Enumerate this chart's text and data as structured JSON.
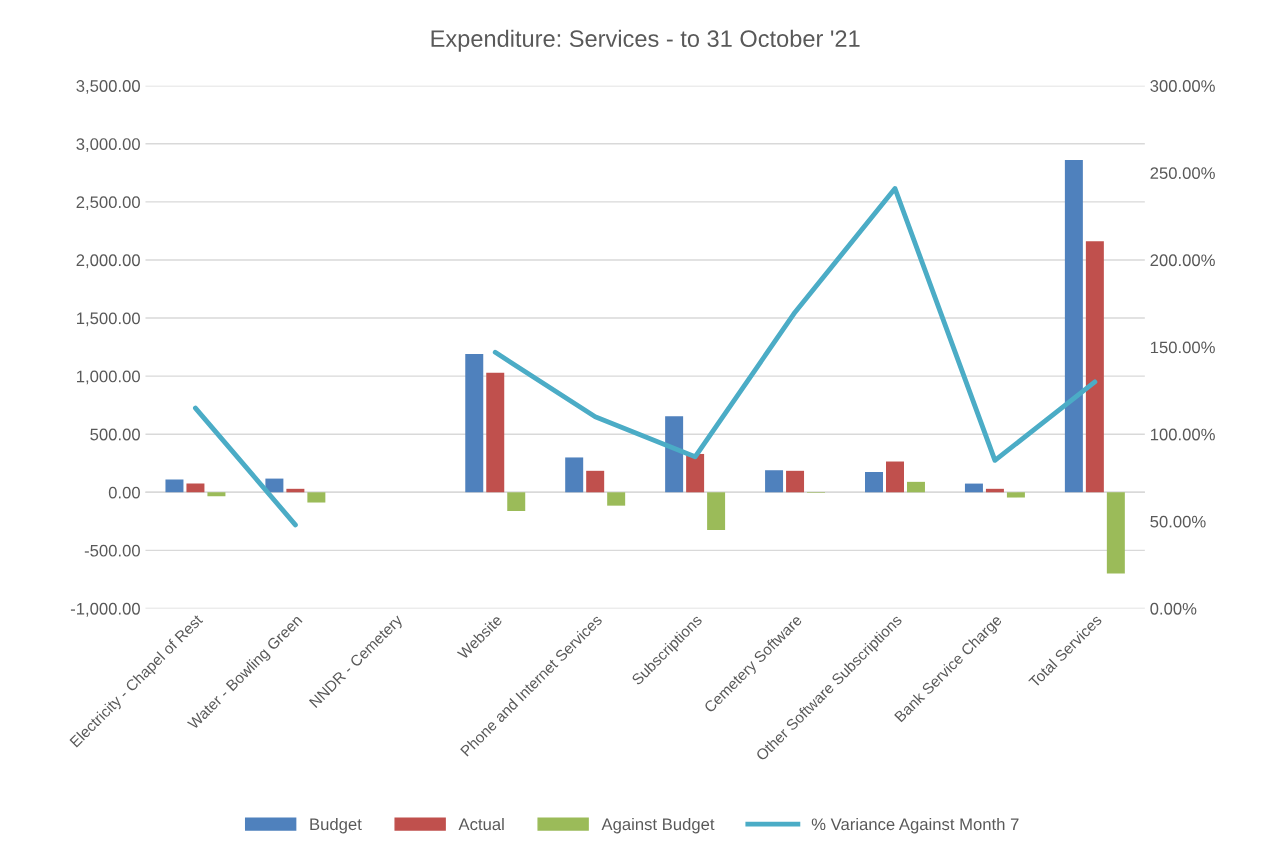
{
  "chart_data": {
    "type": "bar",
    "title": "Expenditure: Services - to 31 October '21",
    "categories": [
      "Electricity - Chapel of Rest",
      "Water - Bowling Green",
      "NNDR - Cemetery",
      "Website",
      "Phone and Internet Services",
      "Subscriptions",
      "Cemetery Software",
      "Other Software Subscriptions",
      "Bank Service Charge",
      "Total Services"
    ],
    "series": [
      {
        "name": "Budget",
        "color": "#4f81bd",
        "values": [
          110,
          118,
          0,
          1191,
          300,
          655,
          190,
          175,
          75,
          2860
        ]
      },
      {
        "name": "Actual",
        "color": "#c0504d",
        "values": [
          75,
          30,
          0,
          1030,
          185,
          330,
          185,
          265,
          30,
          2160
        ]
      },
      {
        "name": "Against Budget",
        "color": "#9bbb59",
        "values": [
          -35,
          -88,
          0,
          -161,
          -115,
          -325,
          -5,
          90,
          -45,
          -700
        ]
      },
      {
        "name": "% Variance Against Month 7",
        "type": "line",
        "axis": "y2",
        "color": "#4bacc6",
        "values": [
          115,
          48,
          null,
          147,
          110,
          87,
          170,
          241,
          85,
          130
        ]
      }
    ],
    "ylim": [
      -1000,
      3500
    ],
    "yticks": [
      {
        "value": -1000,
        "label": "-1,000.00"
      },
      {
        "value": -500,
        "label": "-500.00"
      },
      {
        "value": 0,
        "label": "0.00"
      },
      {
        "value": 500,
        "label": "500.00"
      },
      {
        "value": 1000,
        "label": "1,000.00"
      },
      {
        "value": 1500,
        "label": "1,500.00"
      },
      {
        "value": 2000,
        "label": "2,000.00"
      },
      {
        "value": 2500,
        "label": "2,500.00"
      },
      {
        "value": 3000,
        "label": "3,000.00"
      },
      {
        "value": 3500,
        "label": "3,500.00"
      }
    ],
    "y2lim": [
      0,
      300
    ],
    "y2ticks": [
      {
        "value": 0,
        "label": "0.00%"
      },
      {
        "value": 50,
        "label": "50.00%"
      },
      {
        "value": 100,
        "label": "100.00%"
      },
      {
        "value": 150,
        "label": "150.00%"
      },
      {
        "value": 200,
        "label": "200.00%"
      },
      {
        "value": 250,
        "label": "250.00%"
      },
      {
        "value": 300,
        "label": "300.00%"
      }
    ],
    "grid": "y",
    "legend": "bottom",
    "marker": "none",
    "line_style": "solid"
  }
}
